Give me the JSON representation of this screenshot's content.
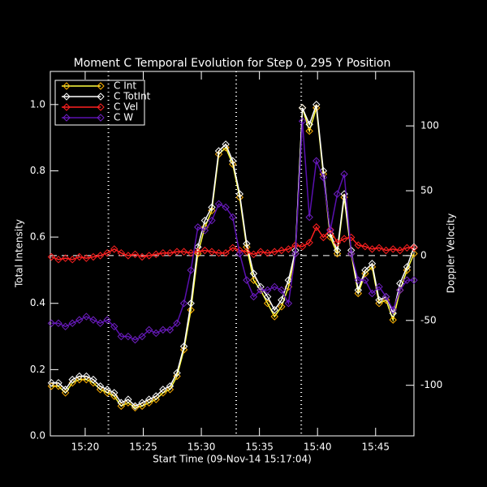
{
  "chart_data": {
    "type": "line",
    "title": "Moment C Temporal Evolution for Step 0, 295 Y Position",
    "x_label": "Start Time (09-Nov-14 15:17:04)",
    "y_label": "Total Intensity",
    "y2_label": "Doppler Velocity",
    "x": [
      17.1,
      17.7,
      18.3,
      18.9,
      19.5,
      20.1,
      20.7,
      21.3,
      21.9,
      22.5,
      23.1,
      23.7,
      24.3,
      24.9,
      25.5,
      26.1,
      26.7,
      27.3,
      27.9,
      28.5,
      29.1,
      29.7,
      30.3,
      30.9,
      31.5,
      32.1,
      32.7,
      33.3,
      33.9,
      34.5,
      35.1,
      35.7,
      36.3,
      36.9,
      37.5,
      38.1,
      38.7,
      39.3,
      39.9,
      40.5,
      41.1,
      41.7,
      42.3,
      42.9,
      43.5,
      44.1,
      44.7,
      45.3,
      45.9,
      46.5,
      47.1,
      47.7,
      48.3
    ],
    "series": [
      {
        "name": "C Int",
        "color": "#ffb000",
        "line_color": "#ffff40",
        "values": [
          0.15,
          0.15,
          0.13,
          0.16,
          0.17,
          0.17,
          0.16,
          0.14,
          0.13,
          0.12,
          0.09,
          0.1,
          0.085,
          0.09,
          0.1,
          0.11,
          0.13,
          0.14,
          0.18,
          0.26,
          0.38,
          0.55,
          0.63,
          0.68,
          0.85,
          0.87,
          0.82,
          0.72,
          0.57,
          0.47,
          0.44,
          0.4,
          0.36,
          0.39,
          0.45,
          0.55,
          0.99,
          0.92,
          0.99,
          0.79,
          0.6,
          0.55,
          0.72,
          0.55,
          0.43,
          0.49,
          0.51,
          0.4,
          0.41,
          0.35,
          0.44,
          0.5,
          0.55
        ]
      },
      {
        "name": "C TotInt",
        "color": "#ffffff",
        "line_color": "#ffffff",
        "values": [
          0.16,
          0.16,
          0.14,
          0.17,
          0.18,
          0.18,
          0.17,
          0.15,
          0.14,
          0.13,
          0.1,
          0.11,
          0.09,
          0.1,
          0.11,
          0.12,
          0.14,
          0.15,
          0.19,
          0.27,
          0.4,
          0.57,
          0.65,
          0.69,
          0.86,
          0.88,
          0.83,
          0.73,
          0.58,
          0.49,
          0.45,
          0.42,
          0.38,
          0.41,
          0.47,
          0.56,
          0.99,
          0.94,
          1.0,
          0.8,
          0.61,
          0.56,
          0.73,
          0.56,
          0.44,
          0.5,
          0.52,
          0.41,
          0.42,
          0.37,
          0.46,
          0.51,
          0.57
        ]
      },
      {
        "name": "C Vel",
        "color": "#ff2020",
        "line_color": "#ff2020",
        "axis": "y2",
        "values": [
          -1,
          -3,
          -2,
          -3,
          -1,
          -2,
          -1,
          0,
          2,
          5,
          2,
          0,
          1,
          -1,
          0,
          1,
          2,
          2,
          3,
          3,
          2,
          3,
          4,
          3,
          2,
          2,
          6,
          4,
          3,
          1,
          3,
          2,
          3,
          4,
          5,
          8,
          7,
          10,
          22,
          14,
          20,
          10,
          13,
          14,
          8,
          7,
          5,
          6,
          4,
          5,
          4,
          6,
          6
        ]
      },
      {
        "name": "C W",
        "color": "#7020c0",
        "line_color": "#5a10b0",
        "values": [
          0.34,
          0.34,
          0.33,
          0.34,
          0.35,
          0.36,
          0.35,
          0.34,
          0.35,
          0.33,
          0.3,
          0.3,
          0.29,
          0.3,
          0.32,
          0.31,
          0.32,
          0.32,
          0.34,
          0.4,
          0.5,
          0.63,
          0.62,
          0.65,
          0.7,
          0.69,
          0.66,
          0.55,
          0.47,
          0.42,
          0.44,
          0.44,
          0.45,
          0.44,
          0.4,
          0.55,
          0.95,
          0.66,
          0.83,
          0.78,
          0.62,
          0.73,
          0.79,
          0.55,
          0.47,
          0.47,
          0.43,
          0.45,
          0.42,
          0.38,
          0.44,
          0.47,
          0.47
        ]
      }
    ],
    "xlim": [
      17,
      48.3
    ],
    "xticks": [
      {
        "value": 20,
        "label": "15:20"
      },
      {
        "value": 25,
        "label": "15:25"
      },
      {
        "value": 30,
        "label": "15:30"
      },
      {
        "value": 35,
        "label": "15:35"
      },
      {
        "value": 40,
        "label": "15:40"
      },
      {
        "value": 45,
        "label": "15:45"
      }
    ],
    "ylim": [
      0,
      1.1
    ],
    "yticks": [
      {
        "value": 0,
        "label": "0.0"
      },
      0.2,
      0.4,
      0.6,
      0.8,
      {
        "value": 1,
        "label": "1.0"
      }
    ],
    "y2lim": [
      -139,
      142
    ],
    "y2ticks": [
      -100,
      -50,
      0,
      50,
      100
    ],
    "vlines": [
      22,
      33,
      38.6
    ],
    "y2_hlines": [
      0
    ],
    "legend": "upper left"
  }
}
